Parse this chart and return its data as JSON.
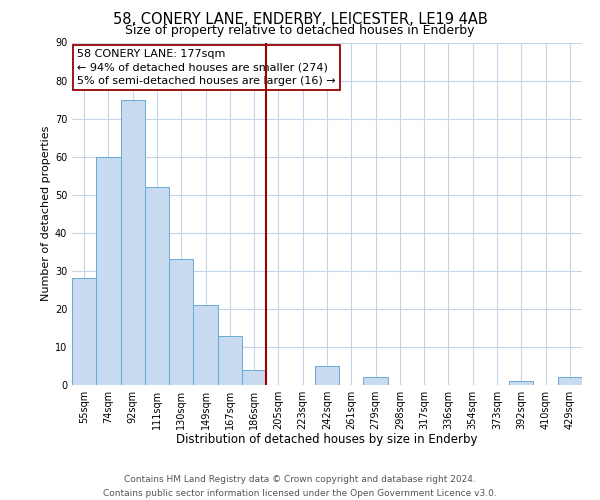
{
  "title": "58, CONERY LANE, ENDERBY, LEICESTER, LE19 4AB",
  "subtitle": "Size of property relative to detached houses in Enderby",
  "xlabel": "Distribution of detached houses by size in Enderby",
  "ylabel": "Number of detached properties",
  "bar_labels": [
    "55sqm",
    "74sqm",
    "92sqm",
    "111sqm",
    "130sqm",
    "149sqm",
    "167sqm",
    "186sqm",
    "205sqm",
    "223sqm",
    "242sqm",
    "261sqm",
    "279sqm",
    "298sqm",
    "317sqm",
    "336sqm",
    "354sqm",
    "373sqm",
    "392sqm",
    "410sqm",
    "429sqm"
  ],
  "bar_values": [
    28,
    60,
    75,
    52,
    33,
    21,
    13,
    4,
    0,
    0,
    5,
    0,
    2,
    0,
    0,
    0,
    0,
    0,
    1,
    0,
    2
  ],
  "bar_color": "#c8daf0",
  "bar_edge_color": "#6aaad4",
  "ylim": [
    0,
    90
  ],
  "yticks": [
    0,
    10,
    20,
    30,
    40,
    50,
    60,
    70,
    80,
    90
  ],
  "vline_color": "#990000",
  "annotation_line1": "58 CONERY LANE: 177sqm",
  "annotation_line2": "← 94% of detached houses are smaller (274)",
  "annotation_line3": "5% of semi-detached houses are larger (16) →",
  "annotation_box_color": "#ffffff",
  "annotation_box_edge": "#990000",
  "footer_text": "Contains HM Land Registry data © Crown copyright and database right 2024.\nContains public sector information licensed under the Open Government Licence v3.0.",
  "background_color": "#ffffff",
  "grid_color": "#c5d5e8",
  "title_fontsize": 10.5,
  "subtitle_fontsize": 9,
  "xlabel_fontsize": 8.5,
  "ylabel_fontsize": 8,
  "tick_fontsize": 7,
  "annotation_fontsize": 8,
  "footer_fontsize": 6.5
}
